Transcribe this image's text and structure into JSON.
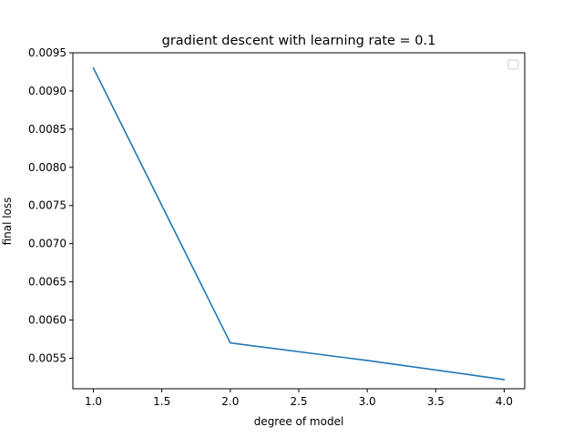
{
  "chart_data": {
    "type": "line",
    "title": "gradient descent with learning rate = 0.1",
    "xlabel": "degree of model",
    "ylabel": "final loss",
    "x": [
      1.0,
      2.0,
      3.0,
      4.0
    ],
    "series": [
      {
        "values": [
          0.0093,
          0.0057,
          0.00547,
          0.00522
        ],
        "color": "#1f77b4"
      }
    ],
    "xlim": [
      0.85,
      4.15
    ],
    "ylim": [
      0.0051,
      0.0095
    ],
    "xticks": [
      1.0,
      1.5,
      2.0,
      2.5,
      3.0,
      3.5,
      4.0
    ],
    "xtick_labels": [
      "1.0",
      "1.5",
      "2.0",
      "2.5",
      "3.0",
      "3.5",
      "4.0"
    ],
    "yticks": [
      0.0055,
      0.006,
      0.0065,
      0.007,
      0.0075,
      0.008,
      0.0085,
      0.009,
      0.0095
    ],
    "ytick_labels": [
      "0.0055",
      "0.0060",
      "0.0065",
      "0.0070",
      "0.0075",
      "0.0080",
      "0.0085",
      "0.0090",
      "0.0095"
    ],
    "grid": false,
    "legend": {
      "placement": "top-right",
      "entries": []
    }
  }
}
